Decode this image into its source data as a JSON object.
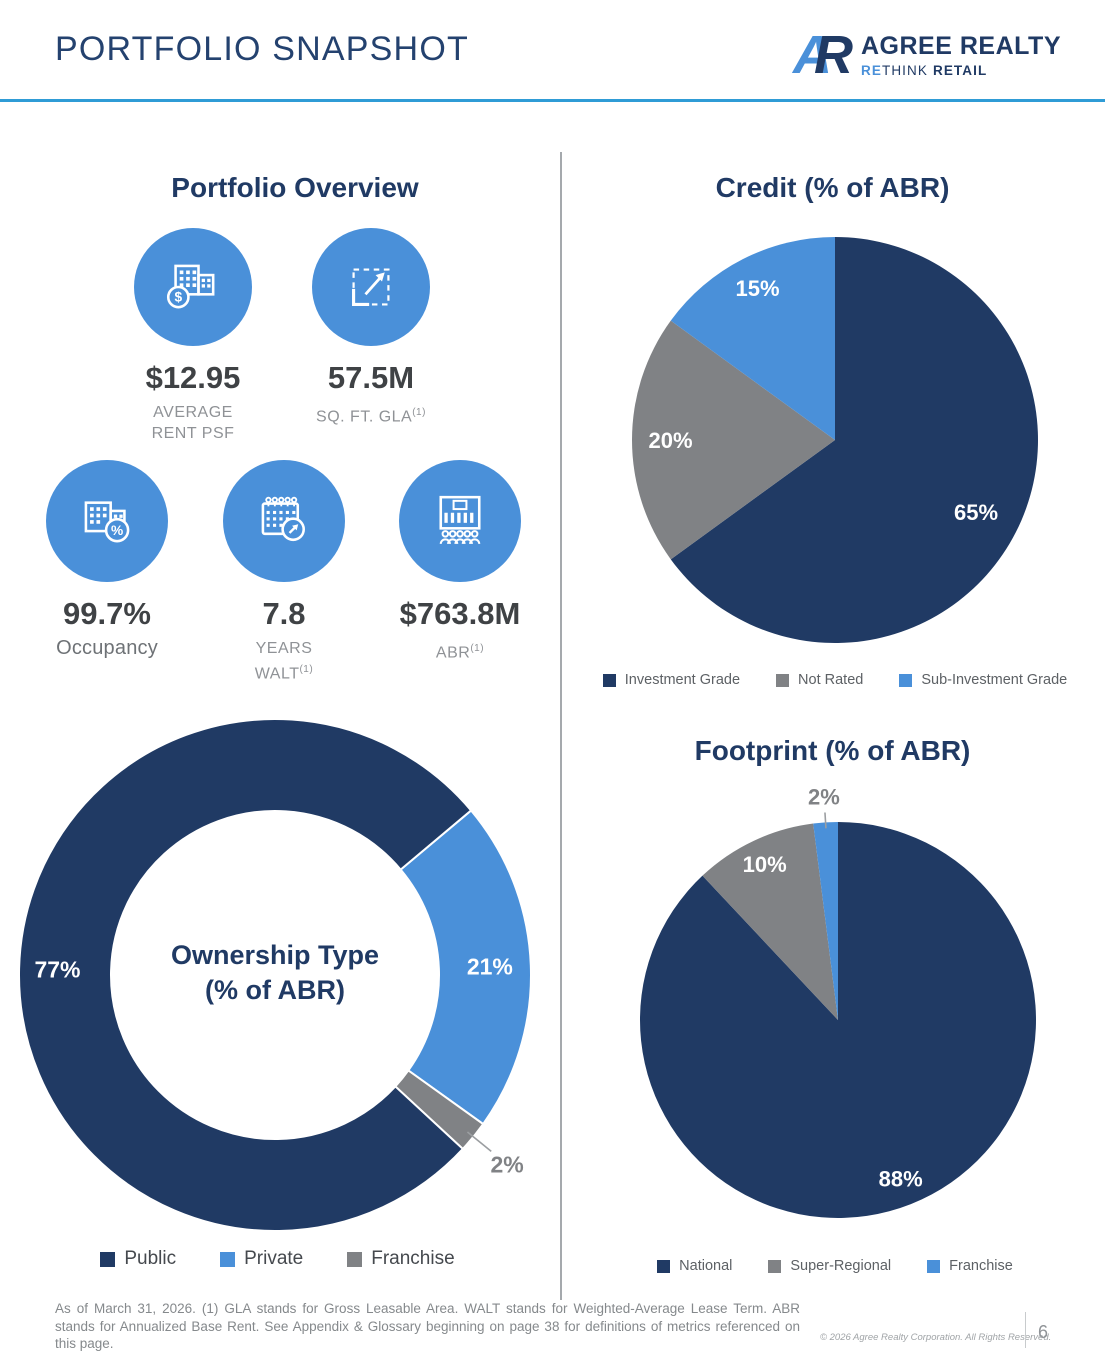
{
  "colors": {
    "navy": "#203a64",
    "blue": "#4a90d9",
    "gray": "#808285",
    "accent_line": "#2f9cd6"
  },
  "header": {
    "title": "PORTFOLIO SNAPSHOT",
    "logo": {
      "monogram_a": "A",
      "monogram_r": "R",
      "name": "AGREE REALTY",
      "tagline_re": "RE",
      "tagline_think": "THINK",
      "tagline_retail": "RETAIL"
    }
  },
  "portfolio_overview": {
    "title": "Portfolio Overview",
    "stats": {
      "avg_rent": {
        "value": "$12.95",
        "line1": "AVERAGE",
        "line2": "RENT PSF",
        "icon": "buildings-dollar-icon"
      },
      "gla": {
        "value": "57.5M",
        "line1": "SQ. FT. GLA",
        "sup": "(1)",
        "icon": "area-measure-icon"
      },
      "occupancy": {
        "value": "99.7%",
        "label": "Occupancy",
        "icon": "building-percent-icon"
      },
      "walt": {
        "value": "7.8",
        "line1": "YEARS",
        "line2": "WALT",
        "sup": "(1)",
        "icon": "calendar-icon"
      },
      "abr": {
        "value": "$763.8M",
        "line1": "ABR",
        "sup": "(1)",
        "icon": "building-people-icon"
      }
    }
  },
  "chart_data": [
    {
      "type": "pie",
      "variant": "donut",
      "name": "ownership",
      "title": "Ownership Type (% of ABR)",
      "title_lines": [
        "Ownership Type",
        "(% of ABR)"
      ],
      "start_angle_deg": 50,
      "unit": "%",
      "legend_position": "bottom",
      "slices": [
        {
          "label": "Private",
          "value": 21,
          "color": "#4a90d9",
          "label_color": "#ffffff",
          "label_radius": 0.84,
          "placement": "inside"
        },
        {
          "label": "Franchise",
          "value": 2,
          "color": "#808285",
          "label_color": "#808285",
          "label_radius": 1.17,
          "placement": "outside"
        },
        {
          "label": "Public",
          "value": 77,
          "color": "#203a64",
          "label_color": "#ffffff",
          "label_radius": 0.85,
          "placement": "inside"
        }
      ],
      "legend": [
        {
          "label": "Public",
          "color": "#203a64"
        },
        {
          "label": "Private",
          "color": "#4a90d9"
        },
        {
          "label": "Franchise",
          "color": "#808285"
        }
      ]
    },
    {
      "type": "pie",
      "name": "credit",
      "title": "Credit (% of ABR)",
      "start_angle_deg": 0,
      "unit": "%",
      "legend_position": "bottom",
      "slices": [
        {
          "label": "Investment Grade",
          "value": 65,
          "color": "#203a64",
          "label_color": "#ffffff",
          "label_radius": 0.78,
          "placement": "inside"
        },
        {
          "label": "Not Rated",
          "value": 20,
          "color": "#808285",
          "label_color": "#ffffff",
          "label_radius": 0.81,
          "placement": "inside"
        },
        {
          "label": "Sub-Investment Grade",
          "value": 15,
          "color": "#4a90d9",
          "label_color": "#ffffff",
          "label_radius": 0.84,
          "placement": "inside"
        }
      ],
      "legend": [
        {
          "label": "Investment Grade",
          "color": "#203a64"
        },
        {
          "label": "Not Rated",
          "color": "#808285"
        },
        {
          "label": "Sub-Investment Grade",
          "color": "#4a90d9"
        }
      ]
    },
    {
      "type": "pie",
      "name": "footprint",
      "title": "Footprint (% of ABR)",
      "start_angle_deg": 0,
      "unit": "%",
      "legend_position": "bottom",
      "slices": [
        {
          "label": "National",
          "value": 88,
          "color": "#203a64",
          "label_color": "#ffffff",
          "label_radius": 0.86,
          "placement": "inside"
        },
        {
          "label": "Super-Regional",
          "value": 10,
          "color": "#808285",
          "label_color": "#ffffff",
          "label_radius": 0.87,
          "placement": "inside"
        },
        {
          "label": "Franchise",
          "value": 2,
          "color": "#4a90d9",
          "label_color": "#808285",
          "label_radius": 1.13,
          "placement": "outside"
        }
      ],
      "legend": [
        {
          "label": "National",
          "color": "#203a64"
        },
        {
          "label": "Super-Regional",
          "color": "#808285"
        },
        {
          "label": "Franchise",
          "color": "#4a90d9"
        }
      ]
    }
  ],
  "footer": {
    "note": "As of March 31, 2026. (1) GLA stands for Gross Leasable Area.  WALT stands for Weighted-Average Lease Term. ABR stands for Annualized Base Rent. See Appendix & Glossary beginning on page 38 for definitions of metrics referenced on this page.",
    "copyright": "© 2026 Agree Realty Corporation. All Rights Reserved.",
    "page_number": "6"
  }
}
